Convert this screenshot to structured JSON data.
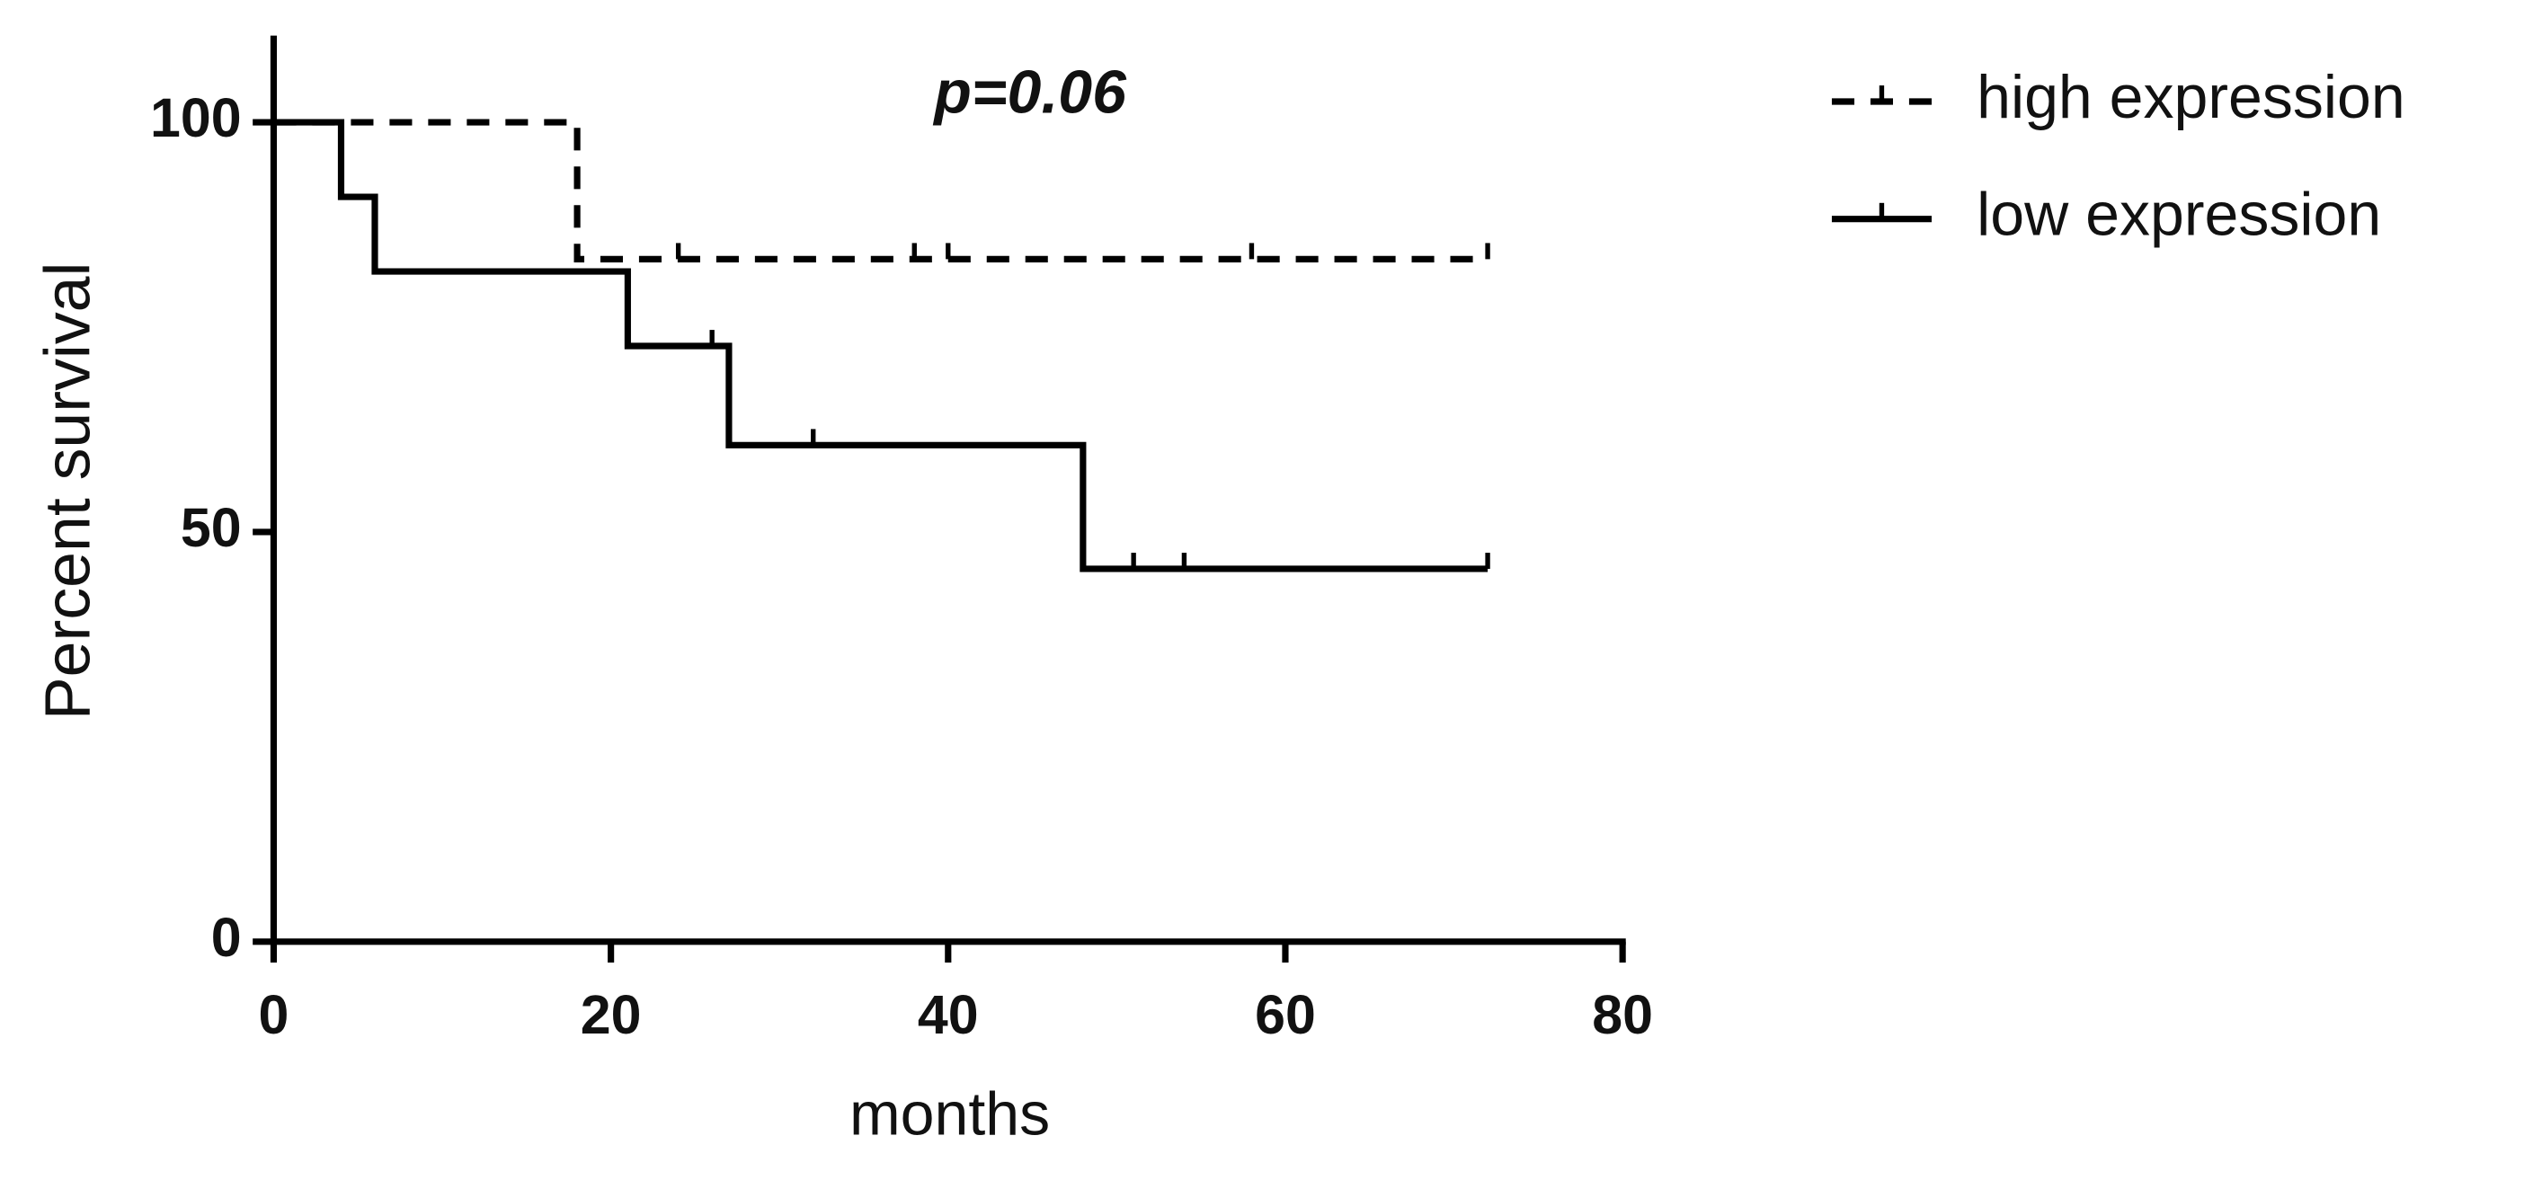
{
  "chart_data": {
    "type": "survival",
    "annotation": "p=0.06",
    "xlabel": "months",
    "ylabel": "Percent survival",
    "xlim": [
      0,
      80
    ],
    "xticks": [
      0,
      20,
      40,
      60,
      80
    ],
    "ylim": [
      0,
      110
    ],
    "yticks": [
      0,
      50,
      100
    ],
    "series": [
      {
        "name": "high expression",
        "color": "#000000",
        "style": "dashed",
        "x": [
          0,
          18,
          72
        ],
        "values": [
          100,
          83.3,
          83.3
        ],
        "censor_x": [
          24,
          38,
          40,
          58,
          72
        ],
        "censor_values": [
          83.3,
          83.3,
          83.3,
          83.3,
          83.3
        ]
      },
      {
        "name": "low expression",
        "color": "#000000",
        "style": "solid",
        "x": [
          0,
          4,
          6,
          21,
          27,
          48,
          72
        ],
        "values": [
          100,
          90.9,
          81.8,
          72.7,
          60.6,
          45.5,
          45.5
        ],
        "censor_x": [
          26,
          32,
          51,
          54,
          72
        ],
        "censor_values": [
          72.7,
          60.6,
          45.5,
          45.5,
          45.5
        ]
      }
    ]
  }
}
